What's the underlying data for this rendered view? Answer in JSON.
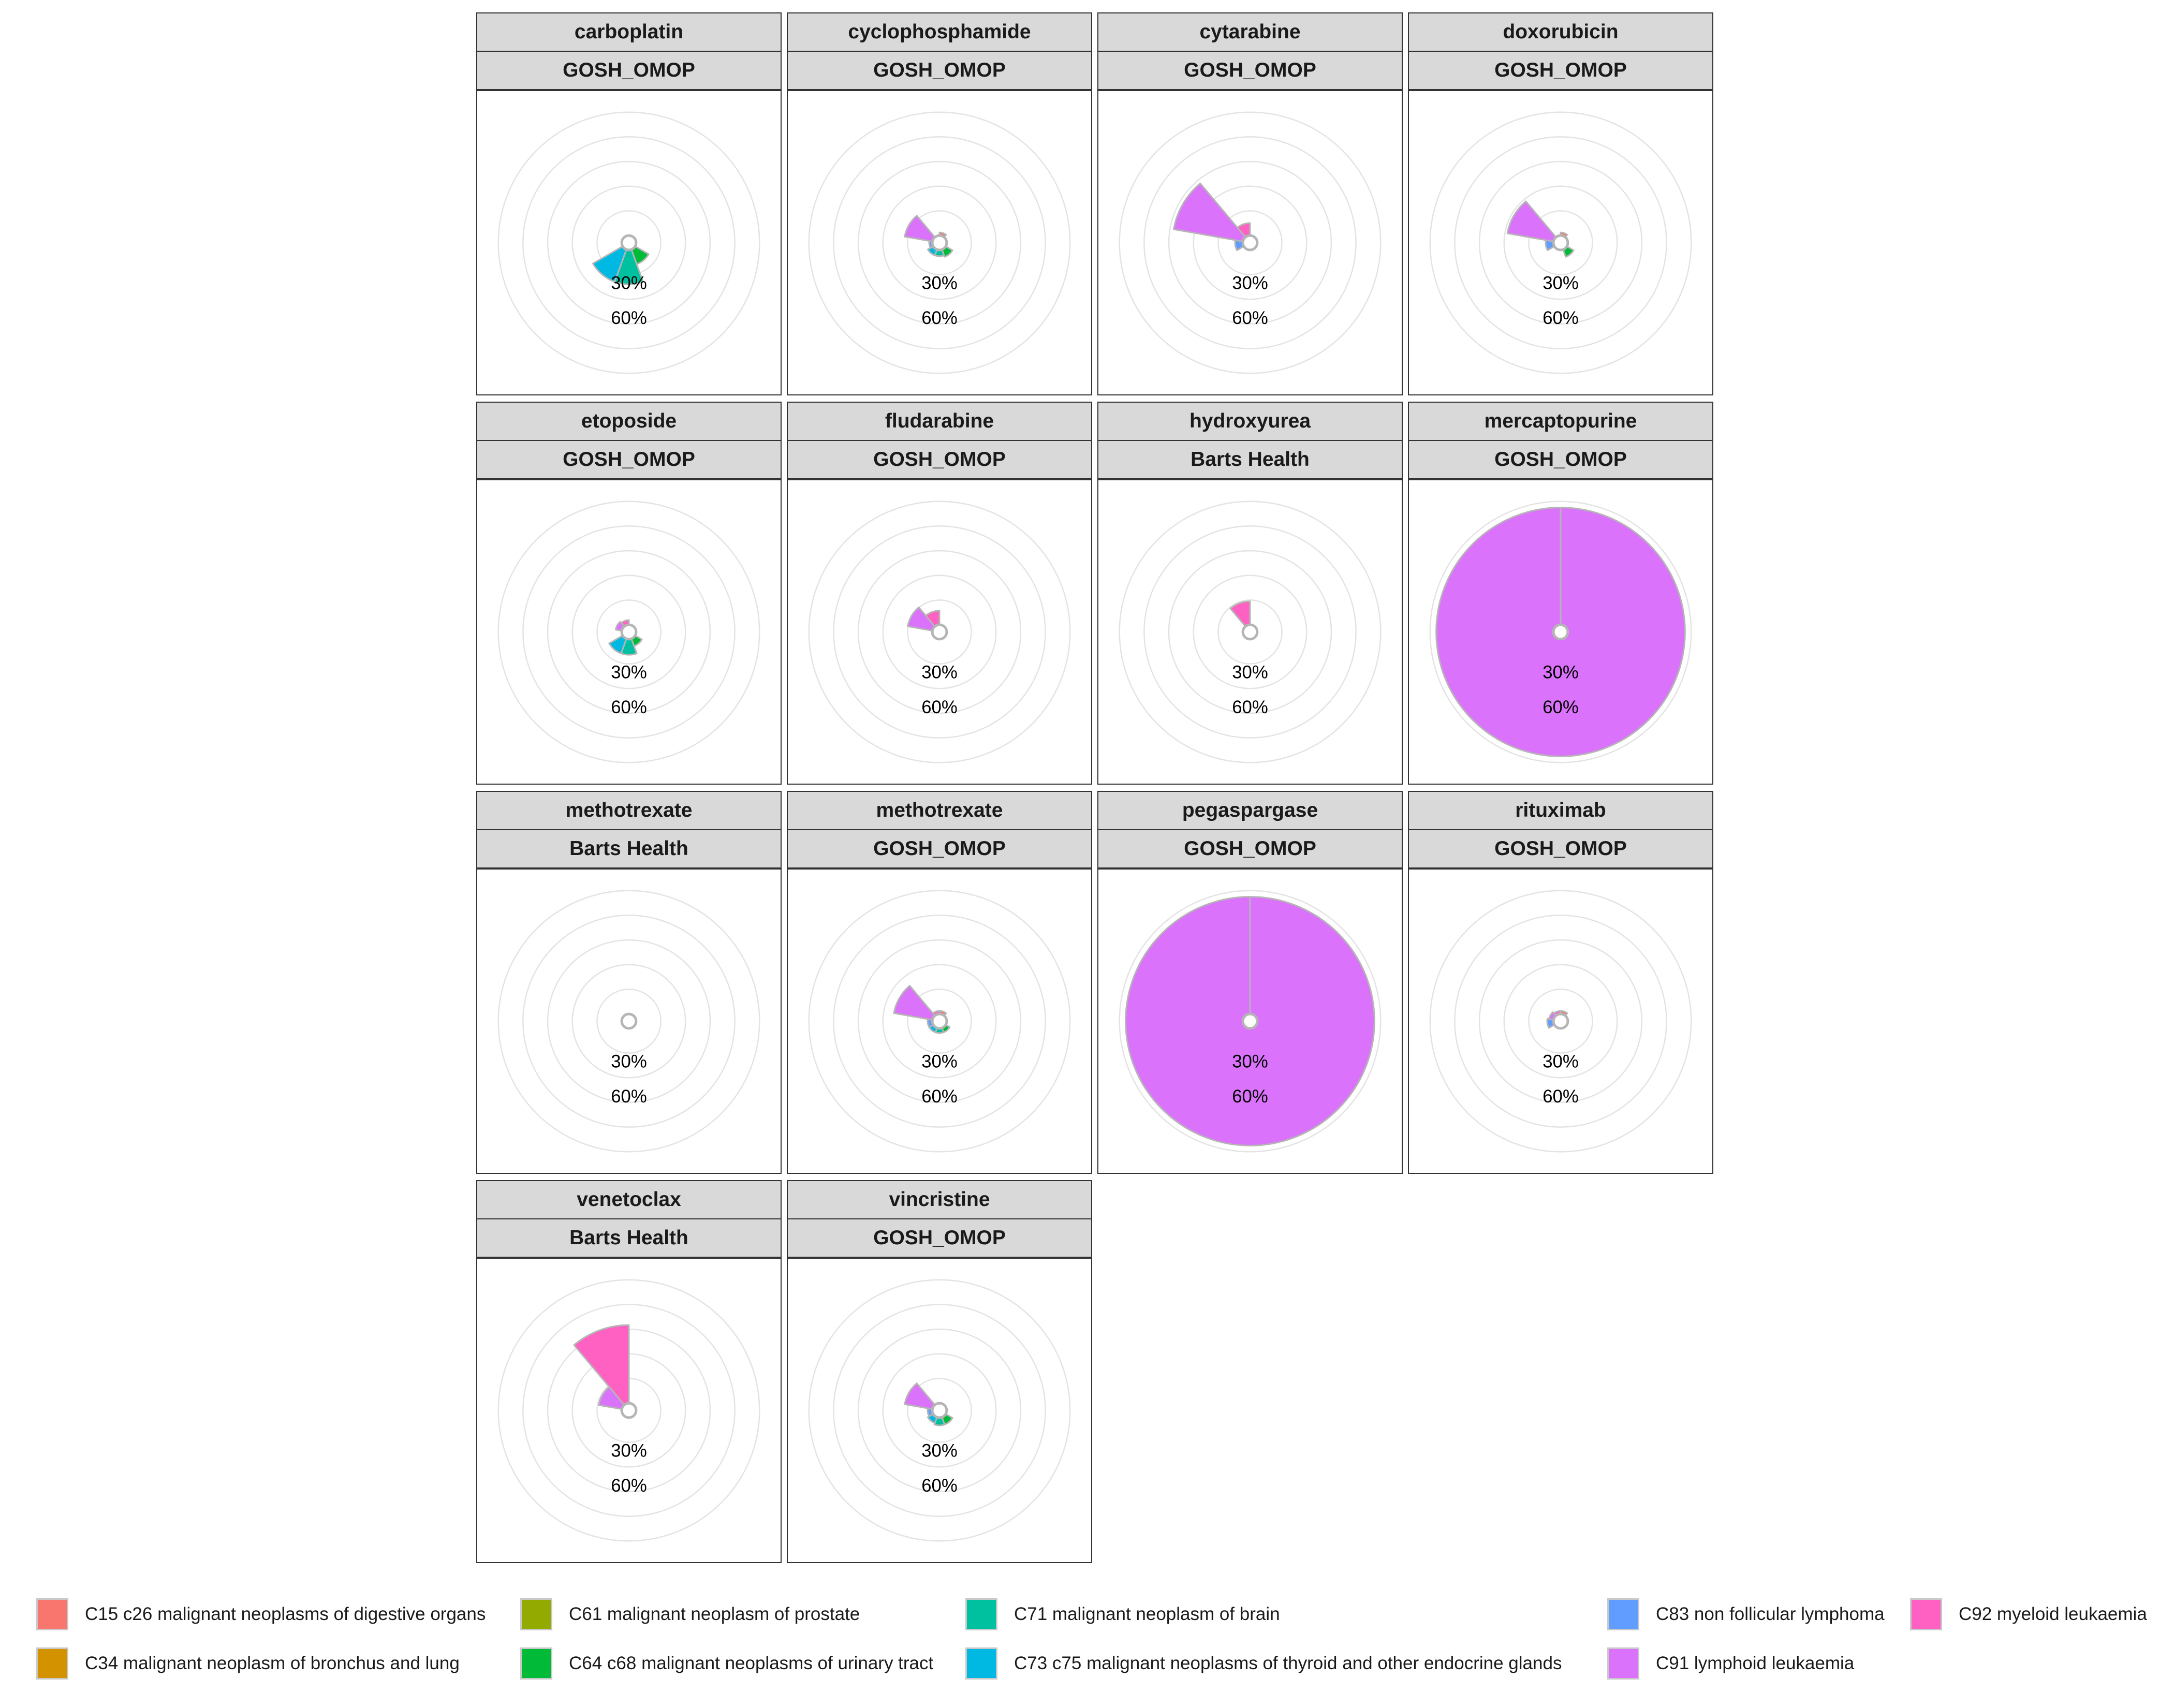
{
  "chart_data": {
    "type": "polar-bar",
    "title": "",
    "radial_breaks": [
      "30%",
      "60%"
    ],
    "categories": [
      {
        "key": "C15",
        "label": "C15 c26 malignant neoplasms of digestive organs",
        "color": "#F8766D"
      },
      {
        "key": "C34",
        "label": "C34 malignant neoplasm of bronchus and lung",
        "color": "#D39200"
      },
      {
        "key": "C61",
        "label": "C61 malignant neoplasm of prostate",
        "color": "#93AA00"
      },
      {
        "key": "C64",
        "label": "C64 c68 malignant neoplasms of urinary tract",
        "color": "#00BA38"
      },
      {
        "key": "C71",
        "label": "C71 malignant neoplasm of brain",
        "color": "#00C19F"
      },
      {
        "key": "C73",
        "label": "C73 c75 malignant neoplasms of thyroid and other endocrine glands",
        "color": "#00B9E3"
      },
      {
        "key": "C83",
        "label": "C83 non follicular lymphoma",
        "color": "#619CFF"
      },
      {
        "key": "C91",
        "label": "C91 lymphoid leukaemia",
        "color": "#DB72FB"
      },
      {
        "key": "C92",
        "label": "C92 myeloid leukaemia",
        "color": "#FF61C3"
      }
    ],
    "panels": [
      {
        "drug": "carboplatin",
        "source": "GOSH_OMOP",
        "values": {
          "C15": 0,
          "C34": 0,
          "C61": 0,
          "C64": 10,
          "C71": 22,
          "C73": 22,
          "C83": 0,
          "C91": 0,
          "C92": 0
        }
      },
      {
        "drug": "cyclophosphamide",
        "source": "GOSH_OMOP",
        "values": {
          "C15": 2,
          "C34": 0,
          "C61": 0,
          "C64": 5,
          "C71": 4,
          "C73": 4,
          "C83": 2,
          "C91": 18,
          "C92": 0
        }
      },
      {
        "drug": "cytarabine",
        "source": "GOSH_OMOP",
        "values": {
          "C15": 0,
          "C34": 0,
          "C61": 0,
          "C64": 0,
          "C71": 0,
          "C73": 0,
          "C83": 5,
          "C91": 45,
          "C92": 8
        }
      },
      {
        "drug": "doxorubicin",
        "source": "GOSH_OMOP",
        "values": {
          "C15": 2,
          "C34": 0,
          "C61": 0,
          "C64": 5,
          "C71": 0,
          "C73": 0,
          "C83": 5,
          "C91": 30,
          "C92": 0
        }
      },
      {
        "drug": "etoposide",
        "source": "GOSH_OMOP",
        "values": {
          "C15": 0,
          "C34": 0,
          "C61": 0,
          "C64": 5,
          "C71": 10,
          "C73": 10,
          "C83": 0,
          "C91": 4,
          "C92": 3
        }
      },
      {
        "drug": "fludarabine",
        "source": "GOSH_OMOP",
        "values": {
          "C15": 0,
          "C34": 0,
          "C61": 0,
          "C64": 0,
          "C71": 0,
          "C73": 0,
          "C83": 0,
          "C91": 16,
          "C92": 9
        }
      },
      {
        "drug": "hydroxyurea",
        "source": "Barts Health",
        "values": {
          "C15": 0,
          "C34": 0,
          "C61": 0,
          "C64": 0,
          "C71": 0,
          "C73": 0,
          "C83": 0,
          "C91": 0,
          "C92": 15
        }
      },
      {
        "drug": "mercaptopurine",
        "source": "GOSH_OMOP",
        "values": {
          "C15": 0,
          "C34": 0,
          "C61": 0,
          "C64": 0,
          "C71": 0,
          "C73": 0,
          "C83": 0,
          "C91": 75,
          "C92": 0
        }
      },
      {
        "drug": "methotrexate",
        "source": "Barts Health",
        "values": {
          "C15": 0,
          "C34": 0,
          "C61": 0,
          "C64": 0,
          "C71": 0,
          "C73": 0,
          "C83": 0,
          "C91": 0,
          "C92": 0
        }
      },
      {
        "drug": "methotrexate",
        "source": "GOSH_OMOP",
        "values": {
          "C15": 2,
          "C34": 0,
          "C61": 0,
          "C64": 3,
          "C71": 3,
          "C73": 3,
          "C83": 3,
          "C91": 25,
          "C92": 2
        }
      },
      {
        "drug": "pegaspargase",
        "source": "GOSH_OMOP",
        "values": {
          "C15": 0,
          "C34": 0,
          "C61": 0,
          "C64": 0,
          "C71": 0,
          "C73": 0,
          "C83": 4,
          "C91": 75,
          "C92": 0
        }
      },
      {
        "drug": "rituximab",
        "source": "GOSH_OMOP",
        "values": {
          "C15": 2,
          "C34": 0,
          "C61": 0,
          "C64": 0,
          "C71": 0,
          "C73": 0,
          "C83": 4,
          "C91": 3,
          "C92": 2
        }
      },
      {
        "drug": "venetoclax",
        "source": "Barts Health",
        "values": {
          "C15": 0,
          "C34": 0,
          "C61": 0,
          "C64": 0,
          "C71": 0,
          "C73": 0,
          "C83": 0,
          "C91": 15,
          "C92": 50
        }
      },
      {
        "drug": "vincristine",
        "source": "GOSH_OMOP",
        "values": {
          "C15": 0,
          "C34": 0,
          "C61": 0,
          "C64": 5,
          "C71": 5,
          "C73": 4,
          "C83": 3,
          "C91": 18,
          "C92": 0
        }
      }
    ],
    "legend_position": "bottom",
    "grid": true
  }
}
